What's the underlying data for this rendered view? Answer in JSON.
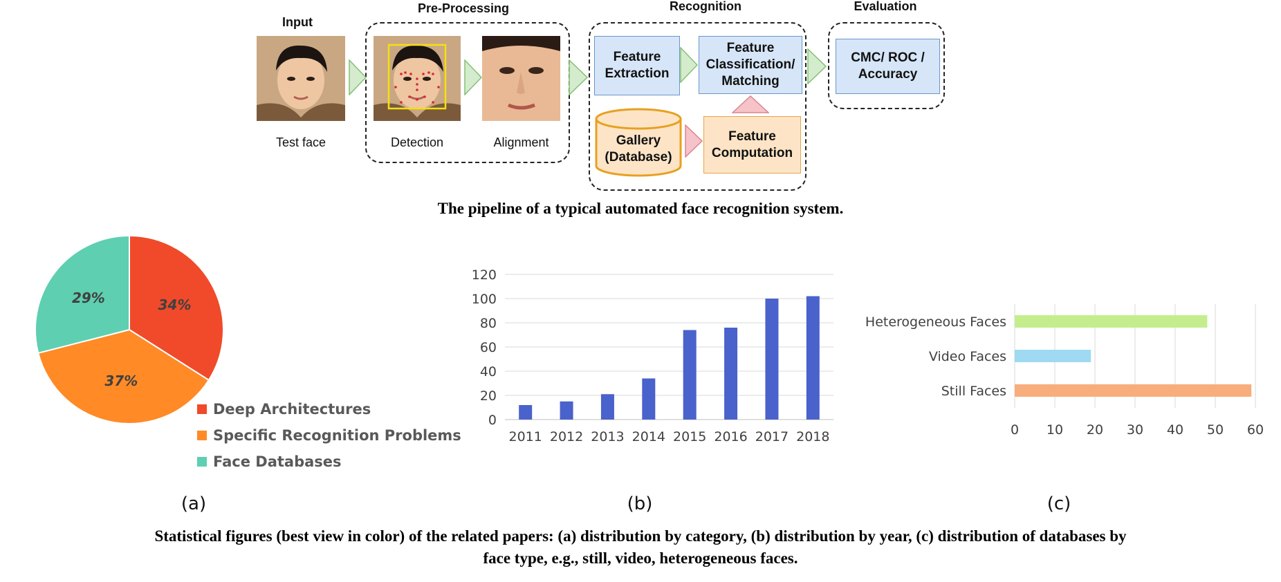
{
  "pipeline": {
    "headers": {
      "input": "Input",
      "preprocessing": "Pre-Processing",
      "recognition": "Recognition",
      "evaluation": "Evaluation"
    },
    "labels": {
      "test_face": "Test face",
      "detection": "Detection",
      "alignment": "Alignment"
    },
    "boxes": {
      "feature_extraction": "Feature\nExtraction",
      "classification": "Feature\nClassification/\nMatching",
      "gallery": "Gallery\n(Database)",
      "feature_computation": "Feature\nComputation",
      "evaluation_metrics": "CMC/ ROC /\nAccuracy"
    },
    "caption": "The pipeline of a typical automated face recognition system.",
    "colors": {
      "blue_box": "#d6e6f8",
      "peach_box": "#fde4c6",
      "green_arrow": "#d4eccd",
      "pink_arrow": "#f6c3c8"
    }
  },
  "figures": {
    "subcaptions": {
      "a": "(a)",
      "b": "(b)",
      "c": "(c)"
    },
    "caption_line1": "Statistical figures (best view in color) of the related papers: (a) distribution by category, (b) distribution by year, (c) distribution of databases by",
    "caption_line2": "face type, e.g., still, video, heterogeneous faces."
  },
  "chart_data": [
    {
      "type": "pie",
      "labels": [
        "Deep Architectures",
        "Specific Recognition Problems",
        "Face Databases"
      ],
      "values": [
        34,
        37,
        29
      ],
      "value_labels": [
        "34%",
        "37%",
        "29%"
      ],
      "colors": [
        "#f04a2a",
        "#ff8a26",
        "#5ecfb1"
      ],
      "legend": "bottom-right"
    },
    {
      "type": "bar",
      "categories": [
        "2011",
        "2012",
        "2013",
        "2014",
        "2015",
        "2016",
        "2017",
        "2018"
      ],
      "values": [
        12,
        15,
        21,
        34,
        74,
        76,
        100,
        102
      ],
      "ylim": [
        0,
        120
      ],
      "yticks": [
        "0",
        "20",
        "40",
        "60",
        "80",
        "100",
        "120"
      ],
      "color": "#4a62cb",
      "grid": true
    },
    {
      "type": "bar",
      "orientation": "horizontal",
      "categories": [
        "Heterogeneous Faces",
        "Video Faces",
        "Still Faces"
      ],
      "values": [
        48,
        19,
        59
      ],
      "colors": [
        "#c4ee8d",
        "#9fd9f2",
        "#f8ae7c"
      ],
      "xlim": [
        0,
        60
      ],
      "xticks": [
        "0",
        "10",
        "20",
        "30",
        "40",
        "50",
        "60"
      ],
      "grid": true
    }
  ]
}
